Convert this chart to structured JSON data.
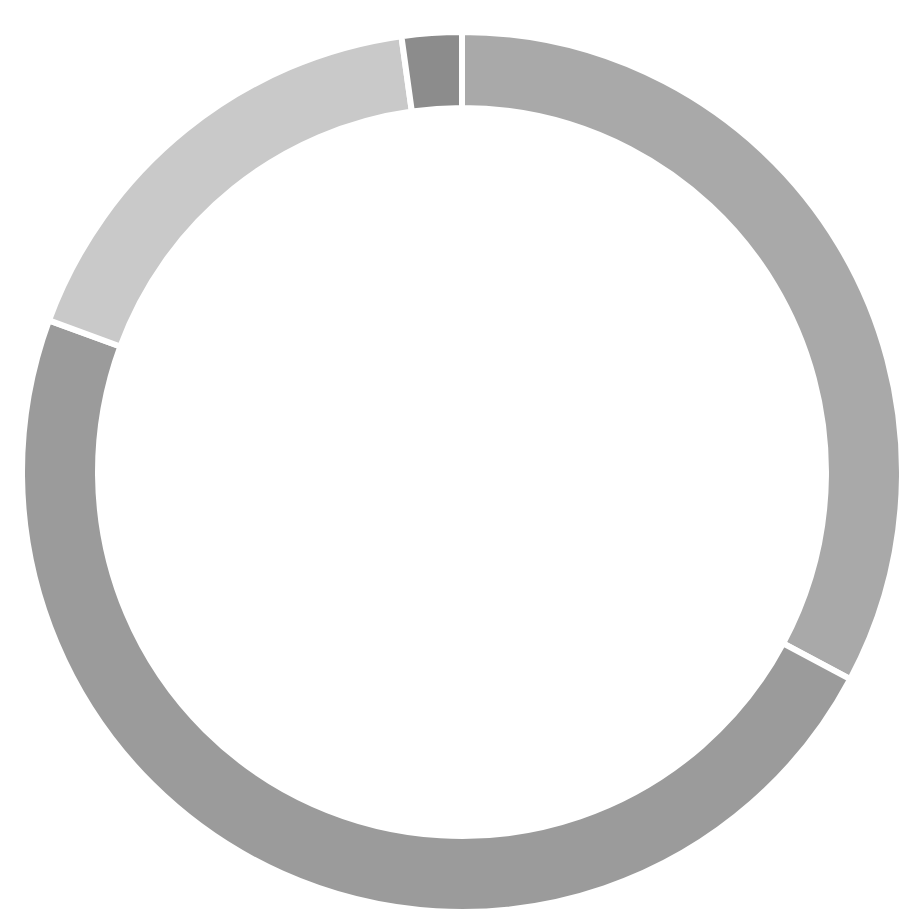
{
  "chart_data": {
    "type": "donut",
    "categories": [
      null,
      null,
      null,
      null
    ],
    "values": [
      32.8,
      47.8,
      17.2,
      2.2
    ],
    "colors": [
      "#a9a9a9",
      "#9b9b9b",
      "#c9c9c9",
      "#8c8c8c"
    ]
  }
}
